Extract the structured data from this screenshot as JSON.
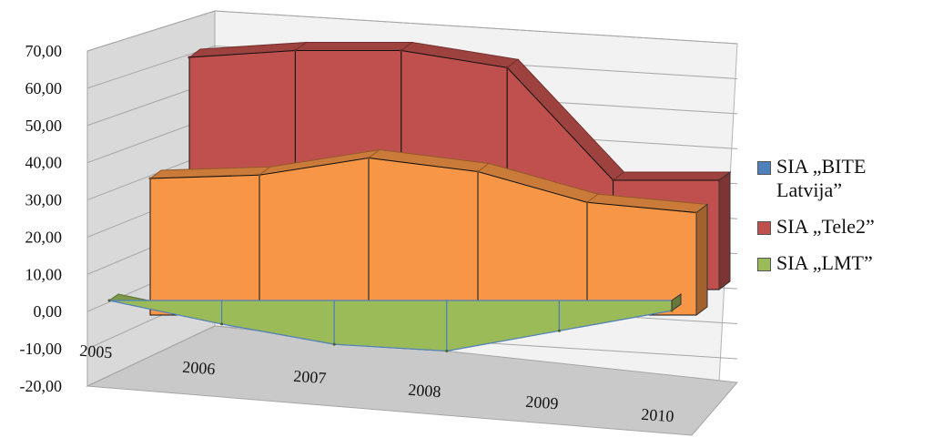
{
  "chart_data": {
    "type": "area",
    "categories": [
      "2005",
      "2006",
      "2007",
      "2008",
      "2009",
      "2010"
    ],
    "series": [
      {
        "name": "SIA „BITE Latvija”",
        "values": [
          0.0,
          -7.0,
          -13.0,
          -15.0,
          -9.0,
          -3.0
        ],
        "color": "#9bbb59"
      },
      {
        "name": "SIA „Tele2”",
        "values": [
          40.0,
          41.0,
          46.0,
          42.0,
          33.0,
          30.0
        ],
        "color": "#f79646"
      },
      {
        "name": "SIA „LMT”",
        "values": [
          68.0,
          70.0,
          70.0,
          65.0,
          32.0,
          32.0
        ],
        "color": "#c0504d"
      }
    ],
    "y_ticks": [
      "70,00",
      "60,00",
      "50,00",
      "40,00",
      "30,00",
      "20,00",
      "10,00",
      "0,00",
      "-10,00",
      "-20,00"
    ],
    "ylim": [
      -20,
      70
    ],
    "grid": true,
    "legend_position": "right",
    "legend_swatch_colors": [
      "#4f81bd",
      "#c0504d",
      "#9bbb59"
    ]
  }
}
